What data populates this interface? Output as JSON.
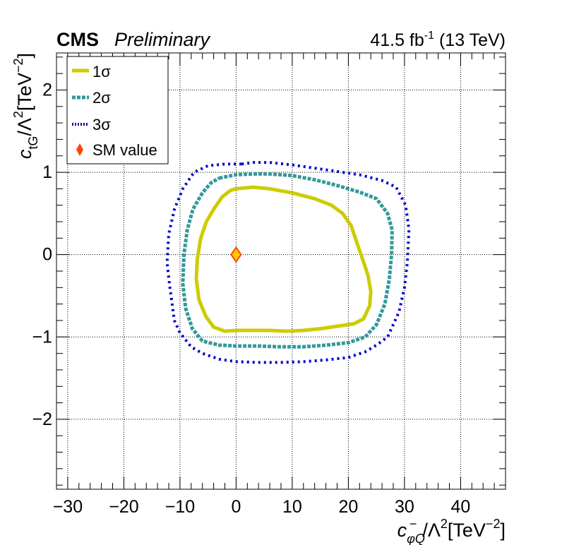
{
  "header": {
    "experiment": "CMS",
    "status": "Preliminary",
    "lumi_value": "41.5 fb",
    "lumi_exponent": "-1",
    "energy": " (13 TeV)"
  },
  "chart_data": {
    "type": "line",
    "xlabel": {
      "base": "c",
      "sub": "φQ",
      "sup": "−",
      "rest": "/Λ",
      "rest_sup": "2",
      "unit": "[TeV",
      "unit_sup": "−2",
      "unit_end": "]"
    },
    "ylabel": {
      "base": "c",
      "sub": "tG",
      "rest": "/Λ",
      "rest_sup": "2",
      "unit": "[TeV",
      "unit_sup": "−2",
      "unit_end": "]"
    },
    "xlim": [
      -32,
      48
    ],
    "ylim": [
      -2.85,
      2.45
    ],
    "x_ticks": [
      -30,
      -20,
      -10,
      0,
      10,
      20,
      30,
      40
    ],
    "x_tick_labels": [
      "−30",
      "−20",
      "−10",
      "0",
      "10",
      "20",
      "30",
      "40"
    ],
    "y_ticks": [
      -2,
      -1,
      0,
      1,
      2
    ],
    "y_tick_labels": [
      "−2",
      "−1",
      "0",
      "1",
      "2"
    ],
    "grid": true,
    "legend_position": "top-left",
    "legend": [
      {
        "label": "1σ",
        "style": "thick-line",
        "color": "#cccc00"
      },
      {
        "label": "2σ",
        "style": "dashed-thick",
        "color": "#339999"
      },
      {
        "label": "3σ",
        "style": "dotted",
        "color": "#0000cc"
      },
      {
        "label": "SM value",
        "style": "diamond",
        "color": "#ff4500"
      }
    ],
    "series": [
      {
        "name": "1σ",
        "color": "#cccc00",
        "points": [
          [
            0,
            0.8
          ],
          [
            3,
            0.82
          ],
          [
            6,
            0.8
          ],
          [
            10,
            0.75
          ],
          [
            14,
            0.68
          ],
          [
            17,
            0.6
          ],
          [
            19,
            0.5
          ],
          [
            20.5,
            0.35
          ],
          [
            21.5,
            0.15
          ],
          [
            22.5,
            -0.05
          ],
          [
            23.5,
            -0.25
          ],
          [
            24,
            -0.45
          ],
          [
            23.8,
            -0.62
          ],
          [
            22.7,
            -0.78
          ],
          [
            21,
            -0.84
          ],
          [
            18,
            -0.87
          ],
          [
            15,
            -0.9
          ],
          [
            12,
            -0.92
          ],
          [
            9,
            -0.93
          ],
          [
            6,
            -0.92
          ],
          [
            3,
            -0.92
          ],
          [
            0,
            -0.92
          ],
          [
            -2,
            -0.93
          ],
          [
            -4,
            -0.88
          ],
          [
            -5.4,
            -0.75
          ],
          [
            -6.6,
            -0.55
          ],
          [
            -7.1,
            -0.3
          ],
          [
            -6.9,
            -0.05
          ],
          [
            -6.3,
            0.2
          ],
          [
            -5.3,
            0.4
          ],
          [
            -4,
            0.55
          ],
          [
            -2.5,
            0.7
          ],
          [
            -1,
            0.78
          ],
          [
            0,
            0.8
          ]
        ]
      },
      {
        "name": "2σ",
        "color": "#339999",
        "points": [
          [
            -3,
            0.93
          ],
          [
            0,
            0.97
          ],
          [
            3,
            0.98
          ],
          [
            6,
            0.98
          ],
          [
            10,
            0.96
          ],
          [
            14,
            0.91
          ],
          [
            18,
            0.84
          ],
          [
            22,
            0.76
          ],
          [
            25,
            0.68
          ],
          [
            27,
            0.5
          ],
          [
            27.8,
            0.3
          ],
          [
            27.7,
            0
          ],
          [
            27.3,
            -0.3
          ],
          [
            26.5,
            -0.6
          ],
          [
            25,
            -0.85
          ],
          [
            23,
            -1.0
          ],
          [
            20,
            -1.07
          ],
          [
            16,
            -1.1
          ],
          [
            12,
            -1.12
          ],
          [
            8,
            -1.12
          ],
          [
            4,
            -1.11
          ],
          [
            0,
            -1.11
          ],
          [
            -3,
            -1.1
          ],
          [
            -6,
            -1.05
          ],
          [
            -7.8,
            -0.9
          ],
          [
            -9,
            -0.65
          ],
          [
            -9.5,
            -0.35
          ],
          [
            -9.3,
            0
          ],
          [
            -8.7,
            0.3
          ],
          [
            -7.7,
            0.55
          ],
          [
            -6,
            0.75
          ],
          [
            -4.5,
            0.87
          ],
          [
            -3,
            0.93
          ]
        ]
      },
      {
        "name": "3σ",
        "color": "#0000cc",
        "points": [
          [
            1,
            1.1
          ],
          [
            3,
            1.12
          ],
          [
            6,
            1.12
          ],
          [
            10,
            1.09
          ],
          [
            14,
            1.05
          ],
          [
            18,
            1.01
          ],
          [
            22,
            0.97
          ],
          [
            26,
            0.9
          ],
          [
            28.5,
            0.82
          ],
          [
            30.2,
            0.6
          ],
          [
            30.8,
            0.3
          ],
          [
            30.5,
            -0.1
          ],
          [
            30,
            -0.4
          ],
          [
            29,
            -0.7
          ],
          [
            27,
            -1.0
          ],
          [
            25,
            -1.1
          ],
          [
            23,
            -1.18
          ],
          [
            20,
            -1.25
          ],
          [
            16,
            -1.28
          ],
          [
            12,
            -1.3
          ],
          [
            8,
            -1.31
          ],
          [
            4,
            -1.31
          ],
          [
            0,
            -1.3
          ],
          [
            -3,
            -1.27
          ],
          [
            -6,
            -1.2
          ],
          [
            -8,
            -1.12
          ],
          [
            -10,
            -0.95
          ],
          [
            -11,
            -0.8
          ],
          [
            -11.8,
            -0.4
          ],
          [
            -12.3,
            -0.1
          ],
          [
            -12,
            0.25
          ],
          [
            -11,
            0.55
          ],
          [
            -9.5,
            0.8
          ],
          [
            -7.5,
            1.0
          ],
          [
            -5,
            1.08
          ],
          [
            -2,
            1.1
          ],
          [
            1,
            1.1
          ]
        ]
      }
    ],
    "sm_point": {
      "label": "SM value",
      "x": 0,
      "y": 0
    }
  }
}
